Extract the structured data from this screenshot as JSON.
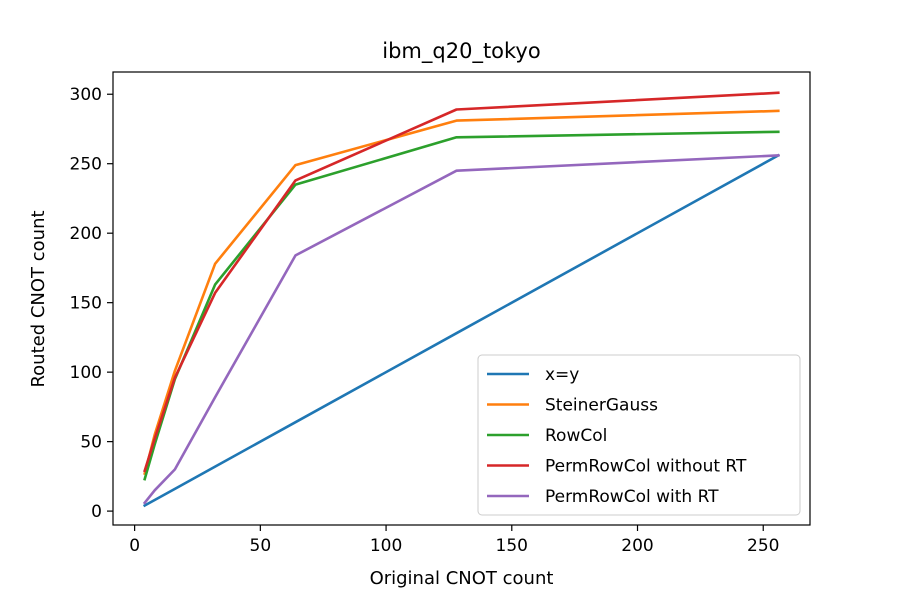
{
  "chart_data": {
    "type": "line",
    "title": "ibm_q20_tokyo",
    "xlabel": "Original CNOT count",
    "ylabel": "Routed CNOT count",
    "xlim": [
      -8.6,
      268.6
    ],
    "ylim": [
      -10,
      316
    ],
    "xticks": [
      0,
      50,
      100,
      150,
      200,
      250
    ],
    "yticks": [
      0,
      50,
      100,
      150,
      200,
      250,
      300
    ],
    "grid": false,
    "legend_position": "lower-right",
    "x": [
      4,
      8,
      16,
      32,
      64,
      128,
      256
    ],
    "series": [
      {
        "name": "x=y",
        "color": "#1f77b4",
        "values": [
          4,
          8,
          16,
          32,
          64,
          128,
          256
        ]
      },
      {
        "name": "SteinerGauss",
        "color": "#ff7f0e",
        "values": [
          27,
          55,
          101,
          178,
          249,
          281,
          288
        ]
      },
      {
        "name": "RowCol",
        "color": "#2ca02c",
        "values": [
          23,
          48,
          95,
          163,
          235,
          269,
          273
        ]
      },
      {
        "name": "PermRowCol without RT",
        "color": "#d62728",
        "values": [
          29,
          52,
          96,
          157,
          238,
          289,
          301
        ]
      },
      {
        "name": "PermRowCol with RT",
        "color": "#9467bd",
        "values": [
          6,
          15,
          30,
          82,
          184,
          245,
          256
        ]
      }
    ]
  }
}
